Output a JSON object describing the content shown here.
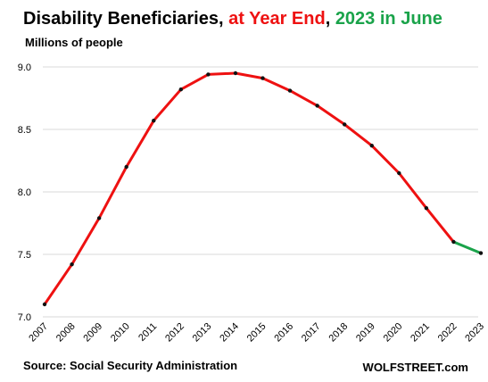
{
  "title": {
    "part1": "Disability Beneficiaries, ",
    "part2": "at Year End",
    "part3": ", ",
    "part4": "2023 in June",
    "color_red": "#ee1111",
    "color_green": "#1aa34a"
  },
  "subtitle": "Millions of people",
  "source": "Source: Social Security Administration",
  "brand": "WOLFSTREET.com",
  "chart_data": {
    "type": "line",
    "title": "Disability Beneficiaries, at Year End, 2023 in June",
    "ylabel": "Millions of people",
    "xlabel": "",
    "ylim": [
      7.0,
      9.0
    ],
    "yticks": [
      "7.0",
      "7.5",
      "8.0",
      "8.5",
      "9.0"
    ],
    "grid": true,
    "categories": [
      "2007",
      "2008",
      "2009",
      "2010",
      "2011",
      "2012",
      "2013",
      "2014",
      "2015",
      "2016",
      "2017",
      "2018",
      "2019",
      "2020",
      "2021",
      "2022",
      "2023"
    ],
    "values": [
      7.1,
      7.42,
      7.79,
      8.2,
      8.57,
      8.82,
      8.94,
      8.95,
      8.91,
      8.81,
      8.69,
      8.54,
      8.37,
      8.15,
      7.87,
      7.6,
      7.51
    ],
    "segment_colors": {
      "year_end": "#ee1111",
      "june_2023": "#1aa34a"
    }
  }
}
